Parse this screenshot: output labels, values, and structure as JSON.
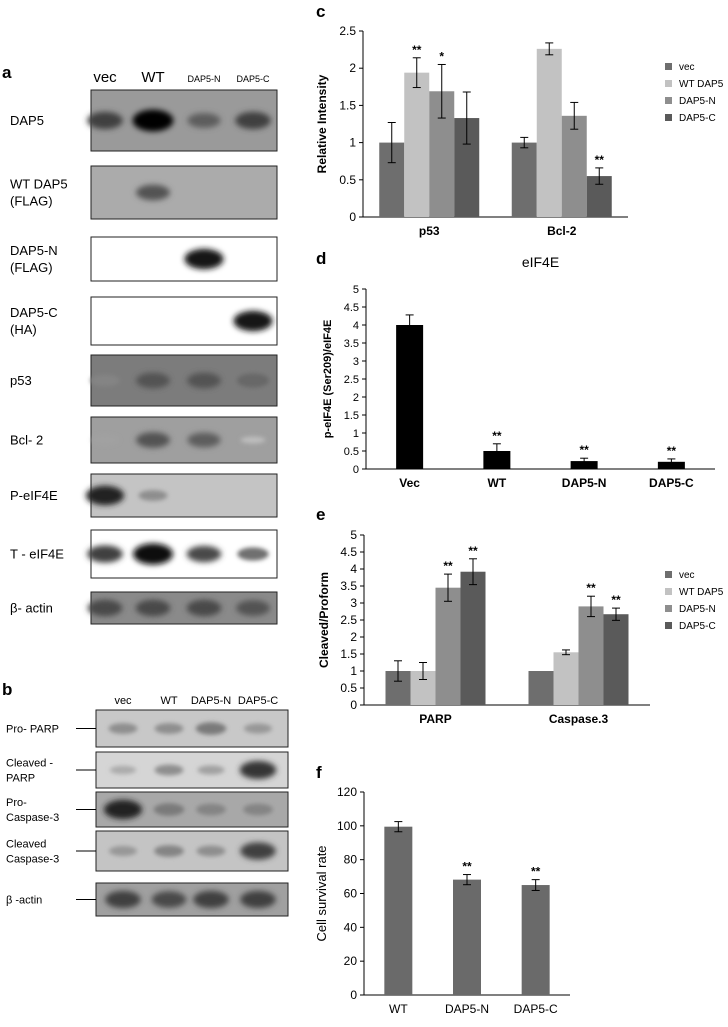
{
  "panel_letters": {
    "a": "a",
    "b": "b",
    "c": "c",
    "d": "d",
    "e": "e",
    "f": "f"
  },
  "blot_a": {
    "lanes": [
      "vec",
      "WT",
      "DAP5-N",
      "DAP5-C"
    ],
    "rows": [
      {
        "label": [
          "DAP5"
        ],
        "bg": "#9a9a9a",
        "bands": [
          0.7,
          1.0,
          0.55,
          0.7
        ]
      },
      {
        "label": [
          "WT DAP5",
          "(FLAG)"
        ],
        "bg": "#ababab",
        "bands": [
          0,
          0.6,
          0,
          0
        ]
      },
      {
        "label": [
          "DAP5-N",
          "(FLAG)"
        ],
        "bg": "#ffffff",
        "bands": [
          0,
          0,
          0.9,
          0
        ]
      },
      {
        "label": [
          "DAP5-C",
          "(HA)"
        ],
        "bg": "#ffffff",
        "bands": [
          0,
          0,
          0,
          0.9
        ]
      },
      {
        "label": [
          "p53"
        ],
        "bg": "#7c7c7c",
        "bands": [
          0.35,
          0.6,
          0.6,
          0.5
        ]
      },
      {
        "label": [
          "Bcl- 2"
        ],
        "bg": "#9f9f9f",
        "bands": [
          0.2,
          0.6,
          0.55,
          0.05
        ]
      },
      {
        "label": [
          "P-eIF4E"
        ],
        "bg": "#c4c4c4",
        "bands": [
          0.85,
          0.3,
          0,
          0
        ]
      },
      {
        "label": [
          "T - eIF4E"
        ],
        "bg": "#ffffff",
        "bands": [
          0.7,
          0.95,
          0.65,
          0.45
        ]
      },
      {
        "label": [
          "β- actin"
        ],
        "bg": "#8a8a8a",
        "bands": [
          0.65,
          0.65,
          0.65,
          0.6
        ]
      }
    ]
  },
  "blot_b": {
    "lanes": [
      "vec",
      "WT",
      "DAP5-N",
      "DAP5-C"
    ],
    "rows": [
      {
        "label": [
          "Pro- PARP"
        ],
        "bg": "#c8c8c8",
        "bands": [
          0.3,
          0.3,
          0.4,
          0.25
        ]
      },
      {
        "label": [
          "Cleaved -",
          "PARP"
        ],
        "bg": "#d5d5d5",
        "bands": [
          0.15,
          0.3,
          0.2,
          0.75
        ]
      },
      {
        "label": [
          "Pro-",
          "Caspase-3"
        ],
        "bg": "#a8a8a8",
        "bands": [
          0.85,
          0.4,
          0.35,
          0.35
        ]
      },
      {
        "label": [
          "Cleaved",
          "Caspase-3"
        ],
        "bg": "#c4c4c4",
        "bands": [
          0.25,
          0.35,
          0.3,
          0.7
        ]
      },
      {
        "label": [
          "β -actin"
        ],
        "bg": "#a0a0a0",
        "bands": [
          0.7,
          0.65,
          0.7,
          0.7
        ]
      }
    ]
  },
  "chart_data": [
    {
      "id": "c",
      "type": "bar",
      "ylabel": "Relative Intensity",
      "categories": [
        "p53",
        "Bcl-2"
      ],
      "ylim": [
        0,
        2.5
      ],
      "yticks": [
        "0",
        "0.5",
        "1",
        "1.5",
        "2",
        "2.5"
      ],
      "series": [
        {
          "name": "vec",
          "color": "#6e6e6e",
          "values": [
            1.0,
            1.0
          ],
          "err": [
            0.27,
            0.07
          ],
          "sig": [
            "",
            ""
          ]
        },
        {
          "name": "WT DAP5",
          "color": "#c2c2c2",
          "values": [
            1.94,
            2.26
          ],
          "err": [
            0.2,
            0.08
          ],
          "sig": [
            "**",
            ""
          ]
        },
        {
          "name": "DAP5-N",
          "color": "#8e8e8e",
          "values": [
            1.69,
            1.36
          ],
          "err": [
            0.36,
            0.18
          ],
          "sig": [
            "*",
            ""
          ]
        },
        {
          "name": "DAP5-C",
          "color": "#5a5a5a",
          "values": [
            1.33,
            0.55
          ],
          "err": [
            0.35,
            0.11
          ],
          "sig": [
            "",
            "**"
          ]
        }
      ]
    },
    {
      "id": "d",
      "type": "bar",
      "title": "eIF4E",
      "ylabel": "p-eIF4E (Ser209)/eIF4E",
      "categories": [
        "Vec",
        "WT",
        "DAP5-N",
        "DAP5-C"
      ],
      "ylim": [
        0,
        5
      ],
      "yticks": [
        "0",
        "0.5",
        "1",
        "1.5",
        "2",
        "2.5",
        "3",
        "3.5",
        "4",
        "4.5",
        "5"
      ],
      "series": [
        {
          "name": "",
          "color": "#000000",
          "values": [
            4.0,
            0.5,
            0.22,
            0.2
          ],
          "err": [
            0.28,
            0.2,
            0.08,
            0.08
          ],
          "sig": [
            "",
            "**",
            "**",
            "**"
          ]
        }
      ]
    },
    {
      "id": "e",
      "type": "bar",
      "ylabel": "Cleaved/Proform",
      "categories": [
        "PARP",
        "Caspase.3"
      ],
      "ylim": [
        0,
        5
      ],
      "yticks": [
        "0",
        "0.5",
        "1",
        "1.5",
        "2",
        "2.5",
        "3",
        "3.5",
        "4",
        "4.5",
        "5"
      ],
      "series": [
        {
          "name": "vec",
          "color": "#6e6e6e",
          "values": [
            1.0,
            1.0
          ],
          "err": [
            0.3,
            0.0
          ],
          "sig": [
            "",
            ""
          ]
        },
        {
          "name": "WT DAP5",
          "color": "#c2c2c2",
          "values": [
            1.0,
            1.55
          ],
          "err": [
            0.25,
            0.07
          ],
          "sig": [
            "",
            ""
          ]
        },
        {
          "name": "DAP5-N",
          "color": "#8e8e8e",
          "values": [
            3.45,
            2.9
          ],
          "err": [
            0.4,
            0.3
          ],
          "sig": [
            "**",
            "**"
          ]
        },
        {
          "name": "DAP5-C",
          "color": "#5a5a5a",
          "values": [
            3.92,
            2.67
          ],
          "err": [
            0.38,
            0.18
          ],
          "sig": [
            "**",
            "**"
          ]
        }
      ]
    },
    {
      "id": "f",
      "type": "bar",
      "ylabel": "Cell survival rate",
      "categories": [
        "WT",
        "DAP5-N",
        "DAP5-C"
      ],
      "ylim": [
        0,
        120
      ],
      "yticks": [
        "0",
        "20",
        "40",
        "60",
        "80",
        "100",
        "120"
      ],
      "series": [
        {
          "name": "",
          "color": "#6a6a6a",
          "values": [
            99.5,
            68.2,
            65.0
          ],
          "err": [
            3.0,
            3.0,
            3.2
          ],
          "sig": [
            "",
            "**",
            "**"
          ]
        }
      ]
    }
  ]
}
